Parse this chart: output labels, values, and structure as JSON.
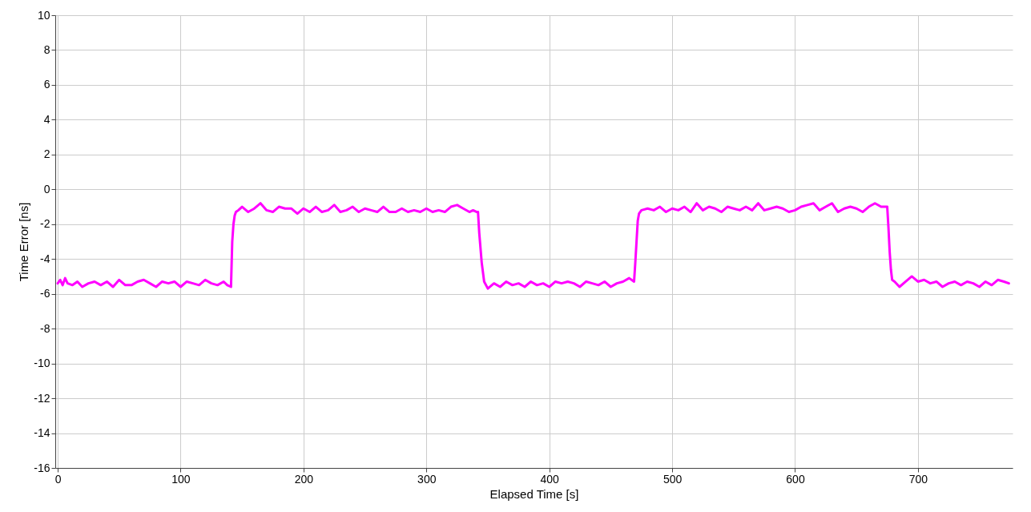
{
  "chart_data": {
    "type": "line",
    "xlabel": "Elapsed Time [s]",
    "ylabel": "Time Error [ns]",
    "xlim": [
      -2,
      777
    ],
    "ylim": [
      -16,
      10
    ],
    "xticks": [
      0,
      100,
      200,
      300,
      400,
      500,
      600,
      700
    ],
    "yticks": [
      -16,
      -14,
      -12,
      -10,
      -8,
      -6,
      -4,
      -2,
      0,
      2,
      4,
      6,
      8,
      10
    ],
    "grid": true,
    "marker": "none",
    "line_style": "solid",
    "series": [
      {
        "color": "#ff00ff",
        "x": [
          0,
          2,
          4,
          6,
          8,
          12,
          16,
          20,
          25,
          30,
          35,
          40,
          45,
          50,
          55,
          60,
          65,
          70,
          75,
          80,
          85,
          90,
          95,
          100,
          105,
          110,
          115,
          120,
          125,
          130,
          135,
          138,
          141,
          142,
          143,
          144,
          145,
          147,
          150,
          155,
          160,
          165,
          170,
          175,
          180,
          185,
          190,
          195,
          200,
          205,
          210,
          215,
          220,
          225,
          230,
          235,
          240,
          245,
          250,
          255,
          260,
          265,
          270,
          275,
          280,
          285,
          290,
          295,
          300,
          305,
          310,
          315,
          320,
          325,
          330,
          335,
          338,
          341,
          342,
          343,
          345,
          347,
          350,
          355,
          360,
          365,
          370,
          375,
          380,
          385,
          390,
          395,
          400,
          405,
          410,
          415,
          420,
          425,
          430,
          435,
          440,
          445,
          450,
          455,
          460,
          465,
          469,
          470,
          471,
          472,
          473,
          475,
          480,
          485,
          490,
          495,
          500,
          505,
          510,
          515,
          520,
          525,
          530,
          535,
          540,
          545,
          550,
          555,
          560,
          565,
          570,
          575,
          580,
          585,
          590,
          595,
          600,
          605,
          610,
          615,
          620,
          625,
          630,
          635,
          640,
          645,
          650,
          655,
          660,
          665,
          670,
          675,
          676,
          677,
          678,
          679,
          681,
          685,
          690,
          695,
          700,
          705,
          710,
          715,
          720,
          725,
          730,
          735,
          740,
          745,
          750,
          755,
          760,
          765,
          770,
          774
        ],
        "values": [
          -5.4,
          -5.2,
          -5.5,
          -5.1,
          -5.4,
          -5.5,
          -5.3,
          -5.6,
          -5.4,
          -5.3,
          -5.5,
          -5.3,
          -5.6,
          -5.2,
          -5.5,
          -5.5,
          -5.3,
          -5.2,
          -5.4,
          -5.6,
          -5.3,
          -5.4,
          -5.3,
          -5.6,
          -5.3,
          -5.4,
          -5.5,
          -5.2,
          -5.4,
          -5.5,
          -5.3,
          -5.5,
          -5.6,
          -3.0,
          -2.0,
          -1.5,
          -1.3,
          -1.2,
          -1.0,
          -1.3,
          -1.1,
          -0.8,
          -1.2,
          -1.3,
          -1.0,
          -1.1,
          -1.1,
          -1.4,
          -1.1,
          -1.3,
          -1.0,
          -1.3,
          -1.2,
          -0.9,
          -1.3,
          -1.2,
          -1.0,
          -1.3,
          -1.1,
          -1.2,
          -1.3,
          -1.0,
          -1.3,
          -1.3,
          -1.1,
          -1.3,
          -1.2,
          -1.3,
          -1.1,
          -1.3,
          -1.2,
          -1.3,
          -1.0,
          -0.9,
          -1.1,
          -1.3,
          -1.2,
          -1.3,
          -1.3,
          -2.5,
          -4.2,
          -5.3,
          -5.7,
          -5.4,
          -5.6,
          -5.3,
          -5.5,
          -5.4,
          -5.6,
          -5.3,
          -5.5,
          -5.4,
          -5.6,
          -5.3,
          -5.4,
          -5.3,
          -5.4,
          -5.6,
          -5.3,
          -5.4,
          -5.5,
          -5.3,
          -5.6,
          -5.4,
          -5.3,
          -5.1,
          -5.3,
          -4.2,
          -3.0,
          -1.8,
          -1.4,
          -1.2,
          -1.1,
          -1.2,
          -1.0,
          -1.3,
          -1.1,
          -1.2,
          -1.0,
          -1.3,
          -0.8,
          -1.2,
          -1.0,
          -1.1,
          -1.3,
          -1.0,
          -1.1,
          -1.2,
          -1.0,
          -1.2,
          -0.8,
          -1.2,
          -1.1,
          -1.0,
          -1.1,
          -1.3,
          -1.2,
          -1.0,
          -0.9,
          -0.8,
          -1.2,
          -1.0,
          -0.8,
          -1.3,
          -1.1,
          -1.0,
          -1.1,
          -1.3,
          -1.0,
          -0.8,
          -1.0,
          -1.0,
          -2.2,
          -3.6,
          -4.6,
          -5.2,
          -5.3,
          -5.6,
          -5.3,
          -5.0,
          -5.3,
          -5.2,
          -5.4,
          -5.3,
          -5.6,
          -5.4,
          -5.3,
          -5.5,
          -5.3,
          -5.4,
          -5.6,
          -5.3,
          -5.5,
          -5.2,
          -5.3,
          -5.4
        ]
      }
    ]
  }
}
